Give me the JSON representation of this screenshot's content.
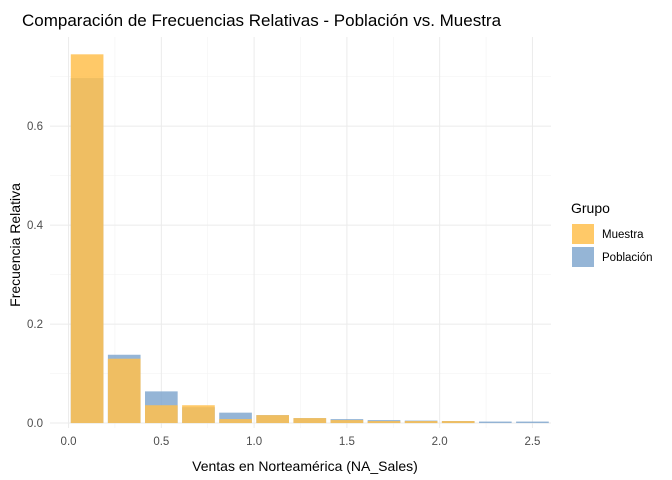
{
  "chart_data": {
    "type": "bar",
    "title": "Comparación de Frecuencias Relativas - Población vs. Muestra",
    "xlabel": "Ventas en Norteamérica (NA_Sales)",
    "ylabel": "Frecuencia Relativa",
    "xlim": [
      -0.1,
      2.6
    ],
    "ylim": [
      -0.01,
      0.78
    ],
    "bin_width": 0.2,
    "x_ticks": [
      0.0,
      0.5,
      1.0,
      1.5,
      2.0,
      2.5
    ],
    "x_tick_labels": [
      "0.0",
      "0.5",
      "1.0",
      "1.5",
      "2.0",
      "2.5"
    ],
    "y_ticks": [
      0.0,
      0.2,
      0.4,
      0.6
    ],
    "y_tick_labels": [
      "0.0",
      "0.2",
      "0.4",
      "0.6"
    ],
    "grid": true,
    "legend": {
      "title": "Grupo",
      "position": "right"
    },
    "bin_centers": [
      0.1,
      0.3,
      0.5,
      0.7,
      0.9,
      1.1,
      1.3,
      1.5,
      1.7,
      1.9,
      2.1,
      2.3,
      2.5
    ],
    "series": [
      {
        "name": "Muestra",
        "color": "#FFC04D",
        "opacity": 0.85,
        "values": [
          0.745,
          0.13,
          0.036,
          0.036,
          0.008,
          0.016,
          0.01,
          0.006,
          0.004,
          0.004,
          0.004,
          0.0,
          0.0
        ]
      },
      {
        "name": "Población",
        "color": "#7BA3CC",
        "opacity": 0.8,
        "values": [
          0.697,
          0.138,
          0.064,
          0.032,
          0.021,
          0.016,
          0.01,
          0.008,
          0.006,
          0.005,
          0.004,
          0.003,
          0.003
        ]
      }
    ]
  }
}
